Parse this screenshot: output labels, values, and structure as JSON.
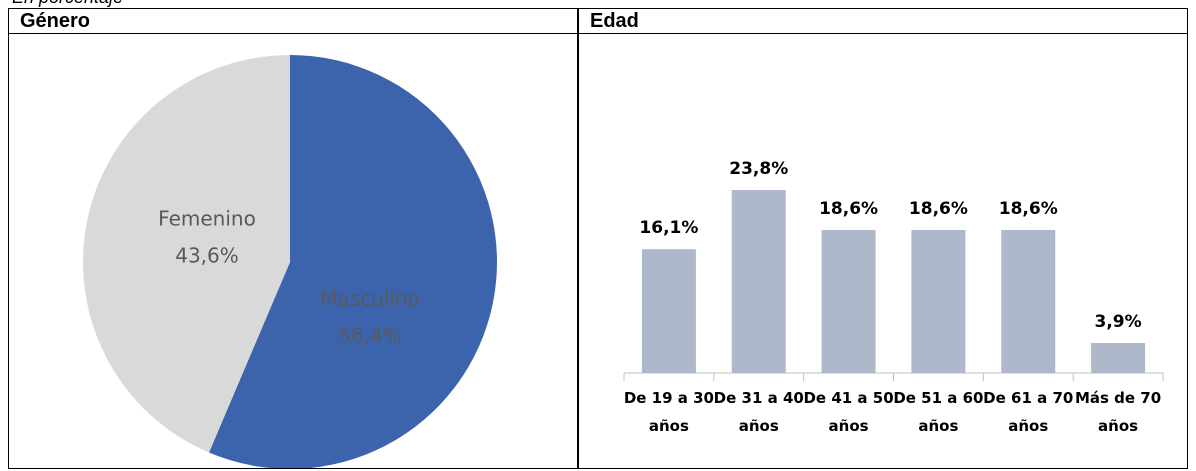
{
  "note": "En porcentaje",
  "chart_data": [
    {
      "type": "pie",
      "title": "Género",
      "categories": [
        "Masculino",
        "Femenino"
      ],
      "values": [
        56.4,
        43.6
      ],
      "value_labels": [
        "56,4%",
        "43,6%"
      ],
      "colors": [
        "#3c64ac",
        "#d9d9d9"
      ]
    },
    {
      "type": "bar",
      "title": "Edad",
      "categories": [
        "De 19 a 30 años",
        "De 31 a 40 años",
        "De 41 a 50 años",
        "De 51 a 60 años",
        "De 61 a 70 años",
        "Más de 70 años"
      ],
      "values": [
        16.1,
        23.8,
        18.6,
        18.6,
        18.6,
        3.9
      ],
      "value_labels": [
        "16,1%",
        "23,8%",
        "18,6%",
        "18,6%",
        "18,6%",
        "3,9%"
      ],
      "color": "#adb9ca"
    }
  ]
}
